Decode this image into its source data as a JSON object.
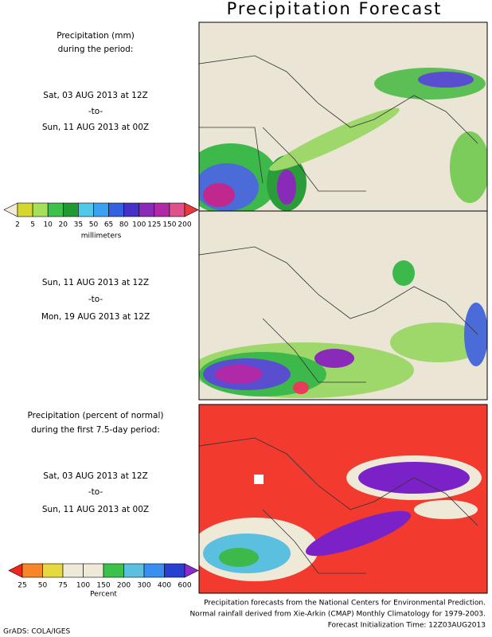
{
  "title": "Precipitation Forecast",
  "panels": [
    {
      "heading": [
        "Precipitation (mm)",
        "during the period:"
      ],
      "start": "Sat, 03 AUG 2013 at 12Z",
      "separator": "-to-",
      "end": "Sun, 11 AUG 2013 at 00Z"
    },
    {
      "start": "Sun, 11 AUG 2013 at 12Z",
      "separator": "-to-",
      "end": "Mon, 19 AUG 2013 at 12Z"
    },
    {
      "heading": [
        "Precipitation (percent of normal)",
        "during the first 7.5-day period:"
      ],
      "start": "Sat, 03 AUG 2013 at 12Z",
      "separator": "-to-",
      "end": "Sun, 11 AUG 2013 at 00Z"
    }
  ],
  "legends": [
    {
      "labels": [
        2,
        5,
        10,
        20,
        35,
        50,
        65,
        80,
        100,
        125,
        150,
        200
      ],
      "unit": "millimeters"
    },
    {
      "labels": [
        25,
        50,
        75,
        100,
        150,
        200,
        300,
        400,
        600
      ],
      "unit": "Percent"
    }
  ],
  "footer": [
    "Precipitation forecasts from the National Centers for Environmental Prediction.",
    "Normal rainfall derived from Xie-Arkin (CMAP) Monthly Climatology for 1979-2003.",
    "Forecast Initialization Time: 12Z03AUG2013"
  ],
  "credit": "GrADS: COLA/IGES"
}
